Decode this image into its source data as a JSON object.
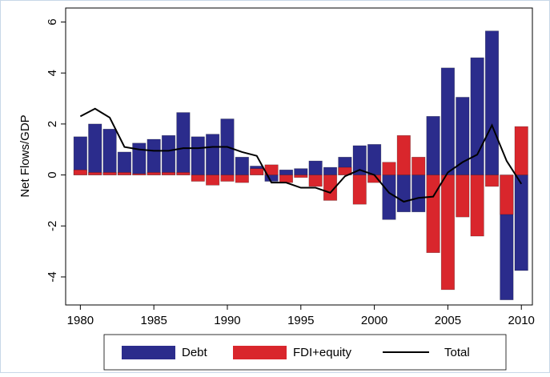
{
  "chart_data": {
    "type": "bar",
    "ylabel": "Net Flows/GDP",
    "x": [
      1980,
      1981,
      1982,
      1983,
      1984,
      1985,
      1986,
      1987,
      1988,
      1989,
      1990,
      1991,
      1992,
      1993,
      1994,
      1995,
      1996,
      1997,
      1998,
      1999,
      2000,
      2001,
      2002,
      2003,
      2004,
      2005,
      2006,
      2007,
      2008,
      2009,
      2010
    ],
    "series": [
      {
        "name": "Debt",
        "type": "bar",
        "color": "#2b2c8c",
        "values": [
          1.5,
          2.0,
          1.8,
          0.9,
          1.25,
          1.4,
          1.55,
          2.45,
          1.5,
          1.6,
          2.2,
          0.7,
          0.35,
          -0.25,
          0.2,
          0.25,
          0.55,
          0.3,
          0.7,
          1.15,
          1.2,
          -1.75,
          -1.45,
          -1.45,
          2.3,
          4.2,
          3.05,
          4.6,
          5.65,
          -4.9,
          -3.75
        ]
      },
      {
        "name": "FDI+equity",
        "type": "bar",
        "color": "#d9262c",
        "values": [
          0.2,
          0.1,
          0.1,
          0.1,
          0.05,
          0.1,
          0.1,
          0.1,
          -0.25,
          -0.4,
          -0.25,
          -0.3,
          0.25,
          0.4,
          -0.3,
          -0.1,
          -0.45,
          -1.0,
          0.3,
          -1.15,
          -0.3,
          0.5,
          1.55,
          0.7,
          -3.05,
          -4.5,
          -1.65,
          -2.4,
          -0.45,
          -1.55,
          1.9
        ]
      },
      {
        "name": "Total",
        "type": "line",
        "color": "#000000",
        "values": [
          2.3,
          2.6,
          2.25,
          1.1,
          1.0,
          0.95,
          0.95,
          1.05,
          1.05,
          1.1,
          1.1,
          0.9,
          0.75,
          -0.3,
          -0.3,
          -0.5,
          -0.5,
          -0.7,
          -0.05,
          0.2,
          0.0,
          -0.7,
          -1.05,
          -0.9,
          -0.85,
          0.1,
          0.5,
          0.8,
          1.95,
          0.55,
          -0.35
        ]
      }
    ],
    "xlim": [
      1979,
      2010.75
    ],
    "xticks": [
      1980,
      1985,
      1990,
      1995,
      2000,
      2005,
      2010
    ],
    "ylim": [
      -5.1,
      6.55
    ],
    "yticks": [
      -4,
      -2,
      0,
      2,
      4,
      6
    ]
  }
}
